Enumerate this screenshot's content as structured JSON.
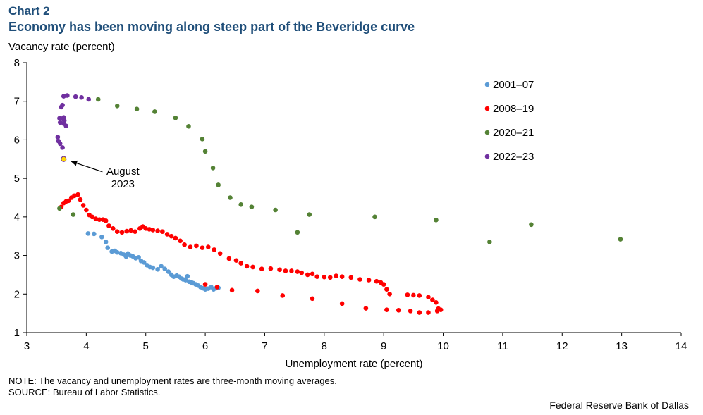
{
  "header": {
    "chart_label": "Chart 2",
    "title": "Economy has been moving along steep part of the Beveridge curve"
  },
  "footer": {
    "note": "NOTE: The vacancy and unemployment rates are three-month moving averages.",
    "source": "SOURCE: Bureau of Labor Statistics.",
    "credit": "Federal Reserve Bank of Dallas"
  },
  "chart_data": {
    "type": "scatter",
    "title": "Economy has been moving along steep part of the Beveridge curve",
    "xlabel": "Unemployment  rate (percent)",
    "ylabel": "Vacancy rate (percent)",
    "xlim": [
      3,
      14
    ],
    "ylim": [
      1,
      8
    ],
    "xticks": [
      "3",
      "4",
      "5",
      "6",
      "7",
      "8",
      "9",
      "10",
      "11",
      "12",
      "13",
      "14"
    ],
    "yticks": [
      "1",
      "2",
      "3",
      "4",
      "5",
      "6",
      "7",
      "8"
    ],
    "grid": false,
    "legend_position": "top-right",
    "annotation": {
      "text_line1": "August",
      "text_line2": "2023",
      "x": 3.62,
      "y": 5.5,
      "marker_color": "#ffd700"
    },
    "series": [
      {
        "name": "2001–07",
        "color": "#5b9bd5",
        "points": [
          [
            4.03,
            3.57
          ],
          [
            4.13,
            3.56
          ],
          [
            4.26,
            3.48
          ],
          [
            4.33,
            3.35
          ],
          [
            4.36,
            3.2
          ],
          [
            4.43,
            3.1
          ],
          [
            4.48,
            3.12
          ],
          [
            4.52,
            3.08
          ],
          [
            4.58,
            3.06
          ],
          [
            4.63,
            3.02
          ],
          [
            4.67,
            2.97
          ],
          [
            4.7,
            3.05
          ],
          [
            4.74,
            3.0
          ],
          [
            4.78,
            2.98
          ],
          [
            4.83,
            2.93
          ],
          [
            4.88,
            2.95
          ],
          [
            4.92,
            2.86
          ],
          [
            4.97,
            2.82
          ],
          [
            5.02,
            2.75
          ],
          [
            5.07,
            2.7
          ],
          [
            5.12,
            2.68
          ],
          [
            5.2,
            2.64
          ],
          [
            5.26,
            2.72
          ],
          [
            5.32,
            2.65
          ],
          [
            5.38,
            2.58
          ],
          [
            5.43,
            2.5
          ],
          [
            5.47,
            2.45
          ],
          [
            5.52,
            2.48
          ],
          [
            5.56,
            2.45
          ],
          [
            5.6,
            2.4
          ],
          [
            5.63,
            2.38
          ],
          [
            5.67,
            2.36
          ],
          [
            5.7,
            2.46
          ],
          [
            5.73,
            2.32
          ],
          [
            5.77,
            2.3
          ],
          [
            5.8,
            2.28
          ],
          [
            5.84,
            2.25
          ],
          [
            5.88,
            2.22
          ],
          [
            5.92,
            2.18
          ],
          [
            5.96,
            2.15
          ],
          [
            6.0,
            2.12
          ],
          [
            6.05,
            2.14
          ],
          [
            6.1,
            2.18
          ],
          [
            6.14,
            2.12
          ],
          [
            6.18,
            2.15
          ],
          [
            6.22,
            2.16
          ]
        ]
      },
      {
        "name": "2008–19",
        "color": "#ff0000",
        "points": [
          [
            3.58,
            4.26
          ],
          [
            3.62,
            4.36
          ],
          [
            3.66,
            4.4
          ],
          [
            3.7,
            4.42
          ],
          [
            3.75,
            4.5
          ],
          [
            3.8,
            4.55
          ],
          [
            3.86,
            4.58
          ],
          [
            3.9,
            4.45
          ],
          [
            3.95,
            4.3
          ],
          [
            4.0,
            4.18
          ],
          [
            4.05,
            4.05
          ],
          [
            4.1,
            4.0
          ],
          [
            4.16,
            3.95
          ],
          [
            4.22,
            3.93
          ],
          [
            4.28,
            3.93
          ],
          [
            4.33,
            3.9
          ],
          [
            4.38,
            3.77
          ],
          [
            4.45,
            3.7
          ],
          [
            4.52,
            3.62
          ],
          [
            4.6,
            3.6
          ],
          [
            4.68,
            3.63
          ],
          [
            4.75,
            3.65
          ],
          [
            4.82,
            3.62
          ],
          [
            4.9,
            3.7
          ],
          [
            4.95,
            3.75
          ],
          [
            5.0,
            3.7
          ],
          [
            5.06,
            3.68
          ],
          [
            5.12,
            3.66
          ],
          [
            5.2,
            3.64
          ],
          [
            5.28,
            3.62
          ],
          [
            5.36,
            3.55
          ],
          [
            5.43,
            3.5
          ],
          [
            5.5,
            3.45
          ],
          [
            5.58,
            3.38
          ],
          [
            5.65,
            3.28
          ],
          [
            5.75,
            3.22
          ],
          [
            5.85,
            3.25
          ],
          [
            5.95,
            3.2
          ],
          [
            6.05,
            3.22
          ],
          [
            6.15,
            3.15
          ],
          [
            6.25,
            3.05
          ],
          [
            6.4,
            2.92
          ],
          [
            6.52,
            2.87
          ],
          [
            6.6,
            2.8
          ],
          [
            6.7,
            2.72
          ],
          [
            6.8,
            2.7
          ],
          [
            6.95,
            2.65
          ],
          [
            7.1,
            2.66
          ],
          [
            7.25,
            2.63
          ],
          [
            7.35,
            2.6
          ],
          [
            7.45,
            2.6
          ],
          [
            7.55,
            2.58
          ],
          [
            7.62,
            2.55
          ],
          [
            7.72,
            2.5
          ],
          [
            7.8,
            2.52
          ],
          [
            7.88,
            2.45
          ],
          [
            8.0,
            2.44
          ],
          [
            8.1,
            2.43
          ],
          [
            8.2,
            2.47
          ],
          [
            8.3,
            2.45
          ],
          [
            8.45,
            2.43
          ],
          [
            8.6,
            2.38
          ],
          [
            8.75,
            2.36
          ],
          [
            8.88,
            2.33
          ],
          [
            8.95,
            2.3
          ],
          [
            9.0,
            2.25
          ],
          [
            9.05,
            2.12
          ],
          [
            9.1,
            2.0
          ],
          [
            9.4,
            1.98
          ],
          [
            9.5,
            1.97
          ],
          [
            9.6,
            1.96
          ],
          [
            9.75,
            1.92
          ],
          [
            9.82,
            1.85
          ],
          [
            9.88,
            1.78
          ],
          [
            9.92,
            1.62
          ],
          [
            9.96,
            1.59
          ],
          [
            9.9,
            1.56
          ],
          [
            9.75,
            1.52
          ],
          [
            9.6,
            1.52
          ],
          [
            9.45,
            1.56
          ],
          [
            9.25,
            1.58
          ],
          [
            9.05,
            1.59
          ],
          [
            8.7,
            1.63
          ],
          [
            8.3,
            1.75
          ],
          [
            7.8,
            1.88
          ],
          [
            7.3,
            1.96
          ],
          [
            6.88,
            2.08
          ],
          [
            6.45,
            2.1
          ],
          [
            6.2,
            2.18
          ],
          [
            6.0,
            2.25
          ]
        ]
      },
      {
        "name": "2020–21",
        "color": "#548235",
        "points": [
          [
            3.55,
            4.22
          ],
          [
            3.78,
            4.06
          ],
          [
            4.2,
            7.05
          ],
          [
            4.52,
            6.88
          ],
          [
            4.85,
            6.8
          ],
          [
            5.15,
            6.73
          ],
          [
            5.5,
            6.57
          ],
          [
            5.72,
            6.35
          ],
          [
            5.95,
            6.02
          ],
          [
            6.0,
            5.7
          ],
          [
            6.13,
            5.27
          ],
          [
            6.22,
            4.83
          ],
          [
            6.42,
            4.5
          ],
          [
            6.6,
            4.32
          ],
          [
            6.78,
            4.26
          ],
          [
            7.18,
            4.18
          ],
          [
            7.55,
            3.6
          ],
          [
            7.75,
            4.06
          ],
          [
            8.85,
            4.0
          ],
          [
            9.88,
            3.92
          ],
          [
            10.78,
            3.35
          ],
          [
            11.48,
            3.8
          ],
          [
            12.98,
            3.42
          ]
        ]
      },
      {
        "name": "2022–23",
        "color": "#7030a0",
        "points": [
          [
            3.62,
            7.13
          ],
          [
            3.68,
            7.15
          ],
          [
            3.82,
            7.12
          ],
          [
            3.92,
            7.1
          ],
          [
            4.04,
            7.05
          ],
          [
            3.6,
            6.9
          ],
          [
            3.58,
            6.85
          ],
          [
            3.55,
            6.56
          ],
          [
            3.62,
            6.58
          ],
          [
            3.6,
            6.55
          ],
          [
            3.63,
            6.5
          ],
          [
            3.56,
            6.45
          ],
          [
            3.62,
            6.42
          ],
          [
            3.66,
            6.36
          ],
          [
            3.52,
            6.07
          ],
          [
            3.53,
            5.97
          ],
          [
            3.56,
            5.9
          ],
          [
            3.6,
            5.8
          ],
          [
            3.62,
            5.52
          ]
        ]
      }
    ]
  }
}
